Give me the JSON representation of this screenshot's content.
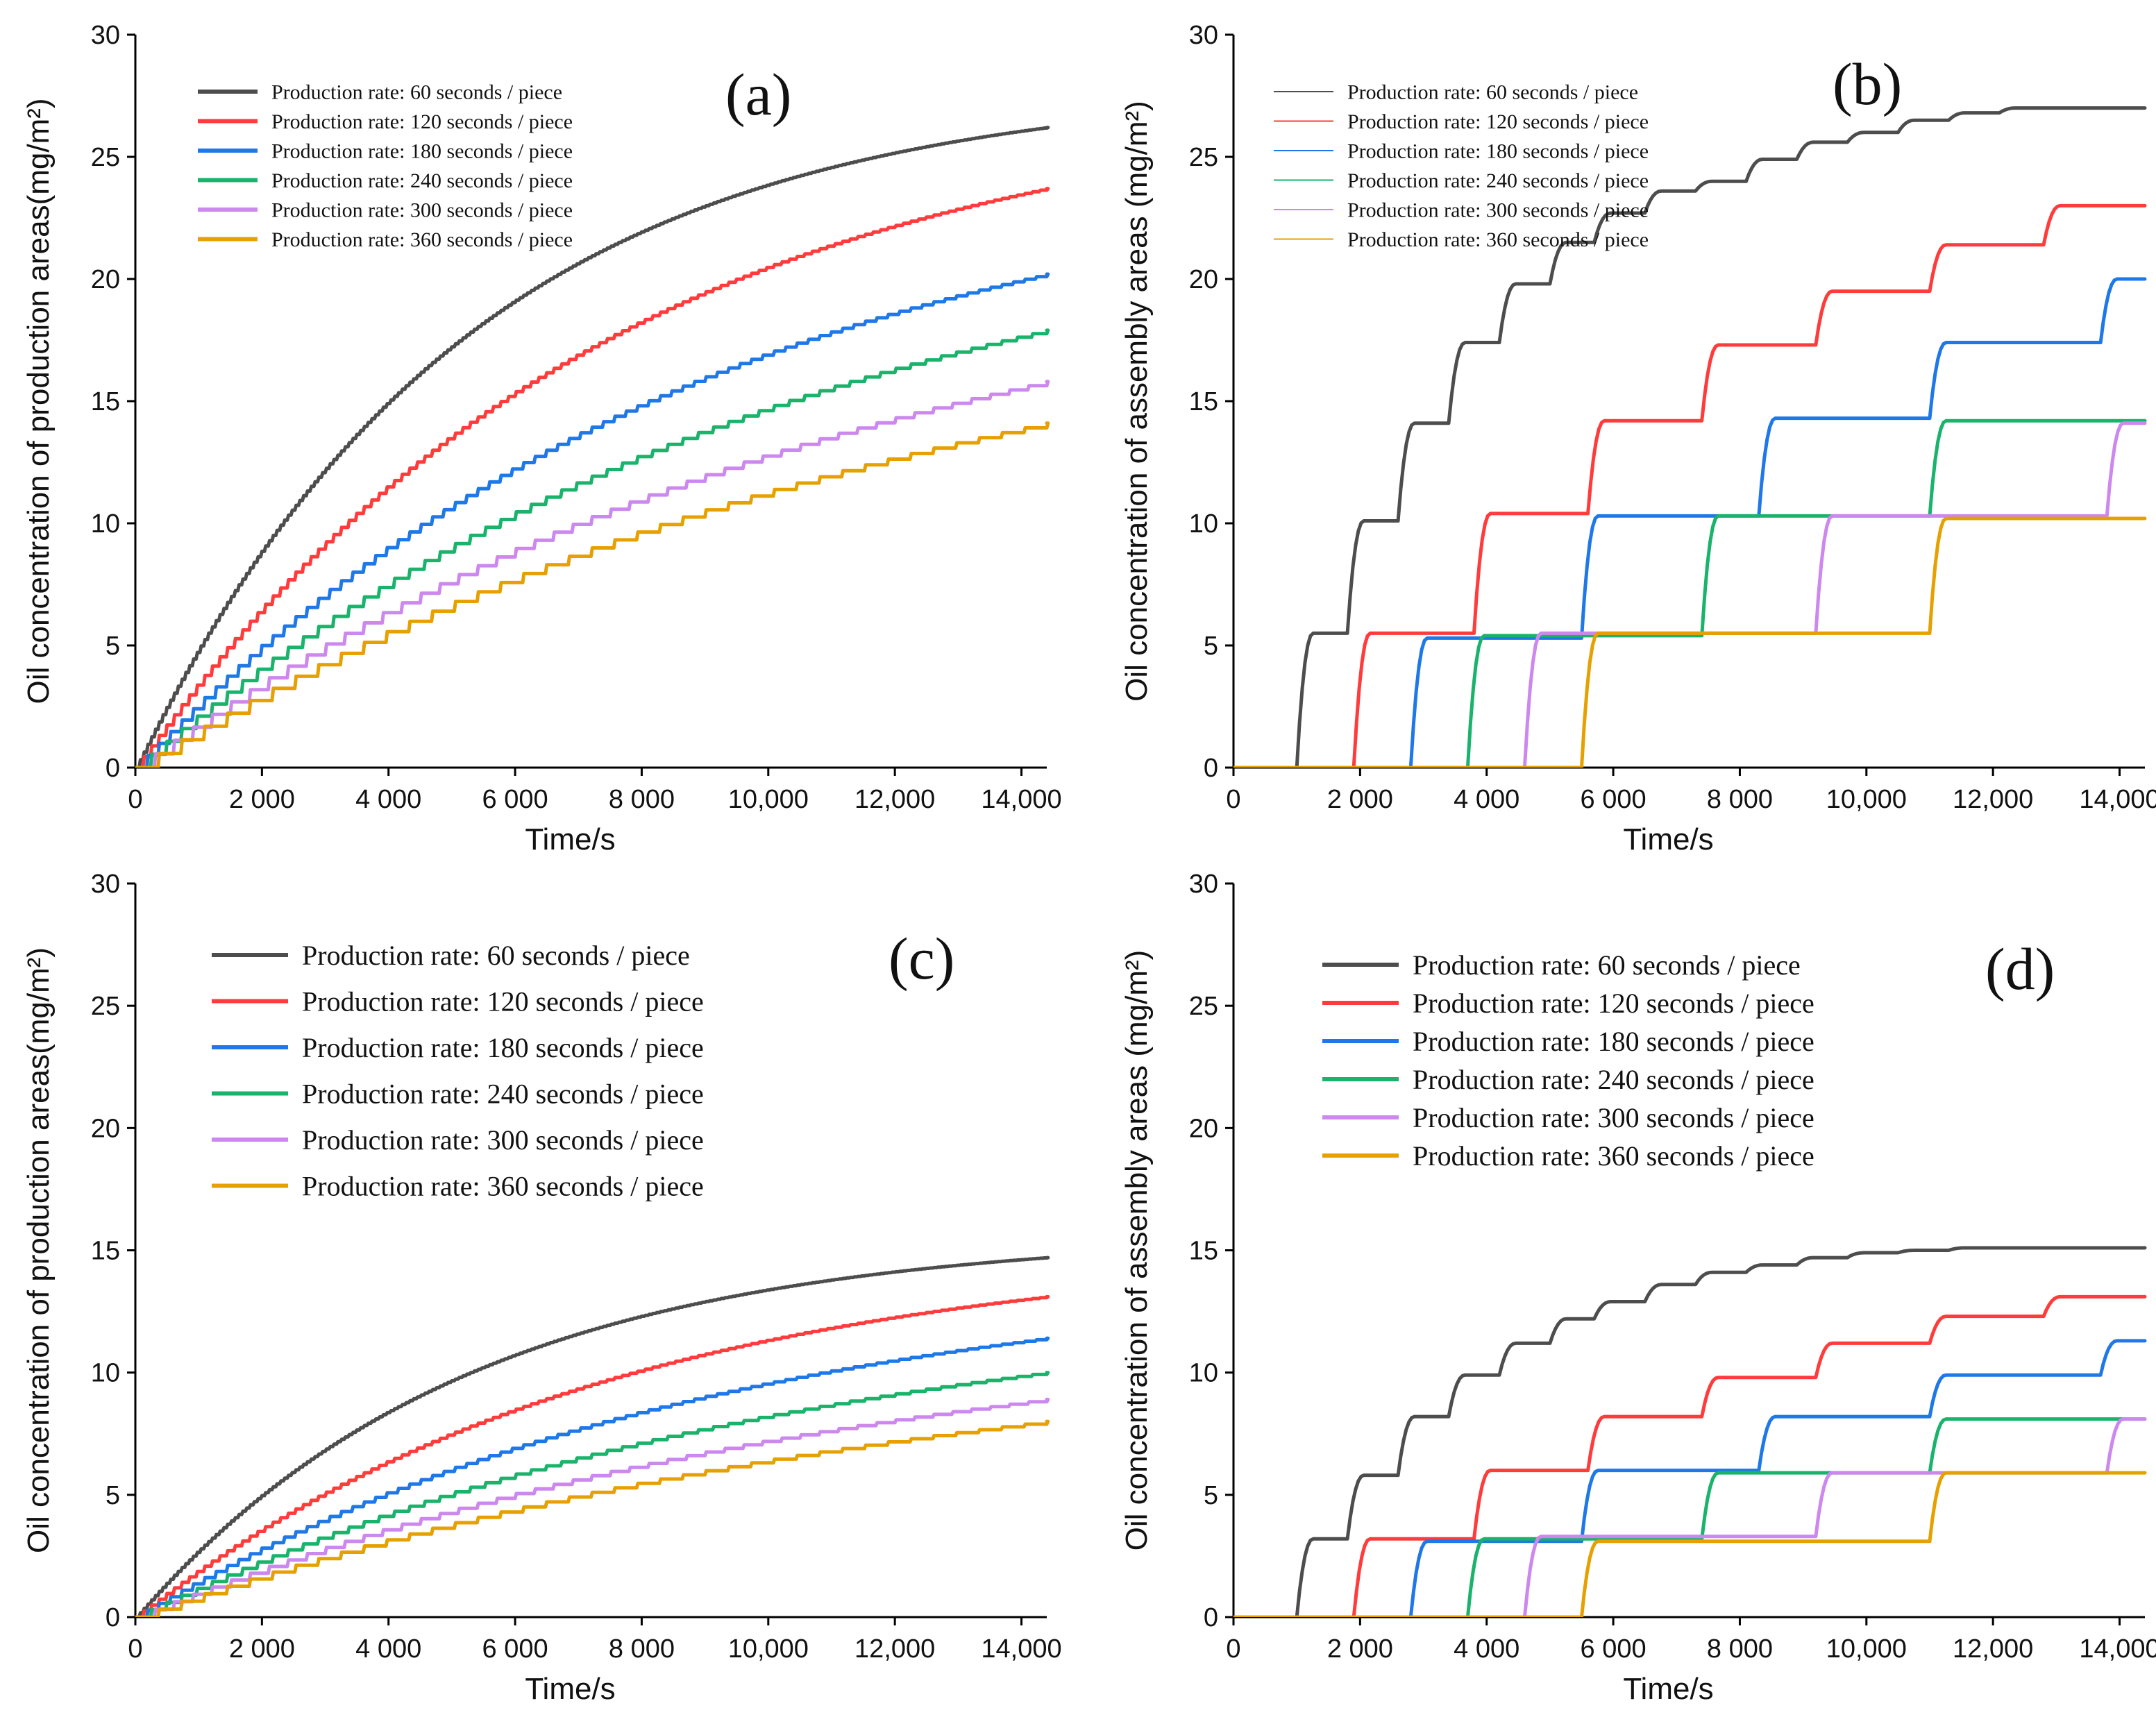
{
  "figure": {
    "colors": {
      "60": "#4d4d4d",
      "120": "#ff3b3b",
      "180": "#1f78e8",
      "240": "#19b36b",
      "300": "#cc88ee",
      "360": "#e6a000"
    }
  },
  "chart_data": [
    {
      "type": "line",
      "panel_label": "(a)",
      "xlabel": "Time/s",
      "ylabel": "Oil concentration of production areas(mg/m²)",
      "xlim": [
        0,
        14400
      ],
      "ylim": [
        0,
        30
      ],
      "x_ticks": [
        "0",
        "2 000",
        "4 000",
        "6 000",
        "8 000",
        "10,000",
        "12,000",
        "14,000"
      ],
      "y_ticks": [
        "0",
        "5",
        "10",
        "15",
        "20",
        "25",
        "30"
      ],
      "legend_position": "top-left",
      "series": [
        {
          "name": "Production rate: 60 seconds / piece",
          "key": "60",
          "model": "exp",
          "final": 26.2,
          "period": 60
        },
        {
          "name": "Production rate: 120 seconds / piece",
          "key": "120",
          "model": "exp",
          "final": 23.7,
          "period": 120
        },
        {
          "name": "Production rate: 180 seconds / piece",
          "key": "180",
          "model": "exp",
          "final": 20.2,
          "period": 180
        },
        {
          "name": "Production rate: 240 seconds / piece",
          "key": "240",
          "model": "exp",
          "final": 17.9,
          "period": 240
        },
        {
          "name": "Production rate: 300 seconds / piece",
          "key": "300",
          "model": "exp",
          "final": 15.8,
          "period": 300
        },
        {
          "name": "Production rate: 360 seconds / piece",
          "key": "360",
          "model": "exp",
          "final": 14.1,
          "period": 360
        }
      ]
    },
    {
      "type": "line",
      "panel_label": "(b)",
      "xlabel": "Time/s",
      "ylabel": "Oil concentration of assembly areas (mg/m²)",
      "xlim": [
        0,
        14400
      ],
      "ylim": [
        0,
        30
      ],
      "x_ticks": [
        "0",
        "2 000",
        "4 000",
        "6 000",
        "8 000",
        "10,000",
        "12,000",
        "14,000"
      ],
      "y_ticks": [
        "0",
        "5",
        "10",
        "15",
        "20",
        "25",
        "30"
      ],
      "legend_position": "top-left",
      "series": [
        {
          "name": "Production rate: 60 seconds / piece",
          "key": "60",
          "model": "step",
          "steps": [
            [
              1000,
              5.5
            ],
            [
              1800,
              10.1
            ],
            [
              2600,
              14.1
            ],
            [
              3400,
              17.4
            ],
            [
              4200,
              19.8
            ],
            [
              5000,
              21.5
            ],
            [
              5700,
              22.7
            ],
            [
              6500,
              23.6
            ],
            [
              7300,
              24.0
            ],
            [
              8100,
              24.9
            ],
            [
              8900,
              25.6
            ],
            [
              9700,
              26.0
            ],
            [
              10500,
              26.5
            ],
            [
              11300,
              26.8
            ],
            [
              12100,
              27.0
            ]
          ]
        },
        {
          "name": "Production rate: 120 seconds / piece",
          "key": "120",
          "model": "step",
          "steps": [
            [
              1900,
              5.5
            ],
            [
              3800,
              10.4
            ],
            [
              5600,
              14.2
            ],
            [
              7400,
              17.3
            ],
            [
              9200,
              19.5
            ],
            [
              11000,
              21.4
            ],
            [
              12800,
              23.0
            ]
          ]
        },
        {
          "name": "Production rate: 180 seconds / piece",
          "key": "180",
          "model": "step",
          "steps": [
            [
              2800,
              5.3
            ],
            [
              5500,
              10.3
            ],
            [
              8300,
              14.3
            ],
            [
              11000,
              17.4
            ],
            [
              13700,
              20.0
            ]
          ]
        },
        {
          "name": "Production rate: 240 seconds / piece",
          "key": "240",
          "model": "step",
          "steps": [
            [
              3700,
              5.4
            ],
            [
              7400,
              10.3
            ],
            [
              11000,
              14.2
            ]
          ]
        },
        {
          "name": "Production rate: 300 seconds / piece",
          "key": "300",
          "model": "step",
          "steps": [
            [
              4600,
              5.5
            ],
            [
              9200,
              10.3
            ],
            [
              13800,
              14.1
            ]
          ]
        },
        {
          "name": "Production rate: 360 seconds / piece",
          "key": "360",
          "model": "step",
          "steps": [
            [
              5500,
              5.5
            ],
            [
              11000,
              10.2
            ]
          ]
        }
      ]
    },
    {
      "type": "line",
      "panel_label": "(c)",
      "xlabel": "Time/s",
      "ylabel": "Oil concentration of production areas(mg/m²)",
      "xlim": [
        0,
        14400
      ],
      "ylim": [
        0,
        30
      ],
      "x_ticks": [
        "0",
        "2 000",
        "4 000",
        "6 000",
        "8 000",
        "10,000",
        "12,000",
        "14,000"
      ],
      "y_ticks": [
        "0",
        "5",
        "10",
        "15",
        "20",
        "25",
        "30"
      ],
      "legend_position": "top-left",
      "series": [
        {
          "name": "Production rate: 60 seconds / piece",
          "key": "60",
          "model": "exp",
          "final": 14.7,
          "period": 60
        },
        {
          "name": "Production rate: 120 seconds / piece",
          "key": "120",
          "model": "exp",
          "final": 13.1,
          "period": 120
        },
        {
          "name": "Production rate: 180 seconds / piece",
          "key": "180",
          "model": "exp",
          "final": 11.4,
          "period": 180
        },
        {
          "name": "Production rate: 240 seconds / piece",
          "key": "240",
          "model": "exp",
          "final": 10.0,
          "period": 240
        },
        {
          "name": "Production rate: 300 seconds / piece",
          "key": "300",
          "model": "exp",
          "final": 8.9,
          "period": 300
        },
        {
          "name": "Production rate: 360 seconds / piece",
          "key": "360",
          "model": "exp",
          "final": 8.0,
          "period": 360
        }
      ]
    },
    {
      "type": "line",
      "panel_label": "(d)",
      "xlabel": "Time/s",
      "ylabel": "Oil concentration of assembly areas (mg/m²)",
      "xlim": [
        0,
        14400
      ],
      "ylim": [
        0,
        30
      ],
      "x_ticks": [
        "0",
        "2 000",
        "4 000",
        "6 000",
        "8 000",
        "10,000",
        "12,000",
        "14,000"
      ],
      "y_ticks": [
        "0",
        "5",
        "10",
        "15",
        "20",
        "25",
        "30"
      ],
      "legend_position": "top-left",
      "series": [
        {
          "name": "Production rate: 60 seconds / piece",
          "key": "60",
          "model": "step",
          "steps": [
            [
              1000,
              3.2
            ],
            [
              1800,
              5.8
            ],
            [
              2600,
              8.2
            ],
            [
              3400,
              9.9
            ],
            [
              4200,
              11.2
            ],
            [
              5000,
              12.2
            ],
            [
              5700,
              12.9
            ],
            [
              6500,
              13.6
            ],
            [
              7300,
              14.1
            ],
            [
              8100,
              14.4
            ],
            [
              8900,
              14.7
            ],
            [
              9700,
              14.9
            ],
            [
              10500,
              15.0
            ],
            [
              11300,
              15.1
            ]
          ]
        },
        {
          "name": "Production rate: 120 seconds / piece",
          "key": "120",
          "model": "step",
          "steps": [
            [
              1900,
              3.2
            ],
            [
              3800,
              6.0
            ],
            [
              5600,
              8.2
            ],
            [
              7400,
              9.8
            ],
            [
              9200,
              11.2
            ],
            [
              11000,
              12.3
            ],
            [
              12800,
              13.1
            ]
          ]
        },
        {
          "name": "Production rate: 180 seconds / piece",
          "key": "180",
          "model": "step",
          "steps": [
            [
              2800,
              3.1
            ],
            [
              5500,
              6.0
            ],
            [
              8300,
              8.2
            ],
            [
              11000,
              9.9
            ],
            [
              13700,
              11.3
            ]
          ]
        },
        {
          "name": "Production rate: 240 seconds / piece",
          "key": "240",
          "model": "step",
          "steps": [
            [
              3700,
              3.2
            ],
            [
              7400,
              5.9
            ],
            [
              11000,
              8.1
            ]
          ]
        },
        {
          "name": "Production rate: 300 seconds / piece",
          "key": "300",
          "model": "step",
          "steps": [
            [
              4600,
              3.3
            ],
            [
              9200,
              5.9
            ],
            [
              13800,
              8.1
            ]
          ]
        },
        {
          "name": "Production rate: 360 seconds / piece",
          "key": "360",
          "model": "step",
          "steps": [
            [
              5500,
              3.1
            ],
            [
              11000,
              5.9
            ]
          ]
        }
      ]
    }
  ]
}
